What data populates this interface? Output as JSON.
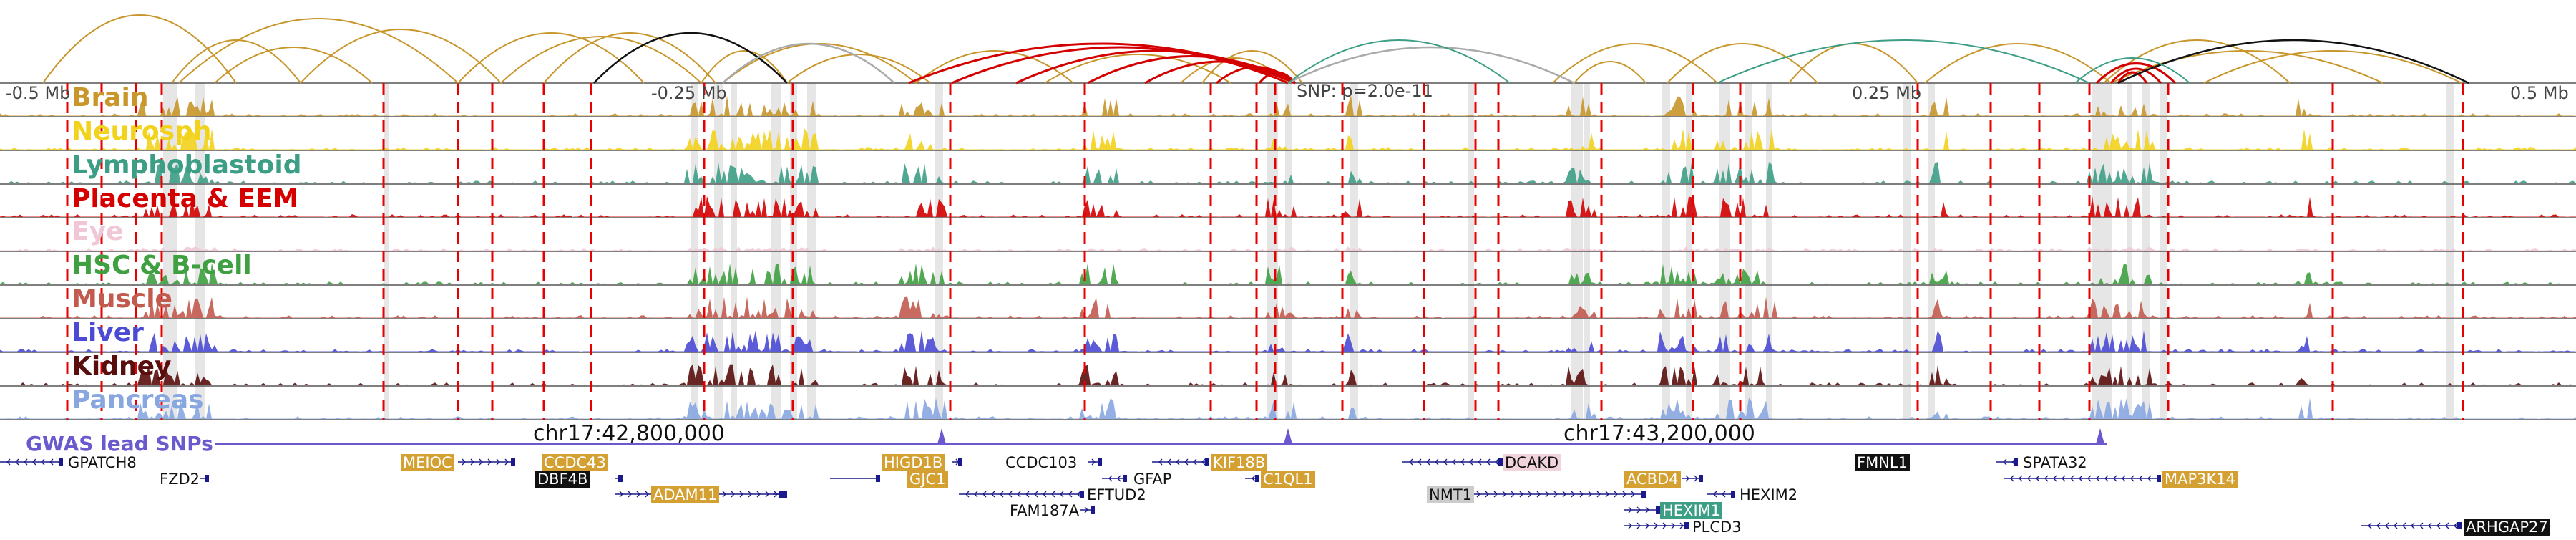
{
  "tracks": [
    {
      "label": "Brain",
      "color": "#c8962a"
    },
    {
      "label": "Neurosph",
      "color": "#f2d21b"
    },
    {
      "label": "Lymphoblastoid",
      "color": "#3d9e86"
    },
    {
      "label": "Placenta & EEM",
      "color": "#d40000"
    },
    {
      "label": "Eye",
      "color": "#f0c7d6"
    },
    {
      "label": "HSC & B-cell",
      "color": "#3ea040"
    },
    {
      "label": "Muscle",
      "color": "#c25a4e"
    },
    {
      "label": "Liver",
      "color": "#4a4ad4"
    },
    {
      "label": "Kidney",
      "color": "#5a0d0d"
    },
    {
      "label": "Pancreas",
      "color": "#88a6e0"
    }
  ],
  "axis": {
    "left": "-0.5 Mb",
    "left_mid": "-0.25 Mb",
    "snp": "SNP: p=2.0e-11",
    "right_mid": "0.25 Mb",
    "right": "0.5 Mb"
  },
  "coordinates": {
    "first": "chr17:42,800,000",
    "second": "chr17:43,200,000"
  },
  "gwas_label": "GWAS lead SNPs",
  "genes": [
    {
      "name": "GPATCH8",
      "style": "plain"
    },
    {
      "name": "FZD2",
      "style": "plain"
    },
    {
      "name": "MEIOC",
      "style": "gold"
    },
    {
      "name": "CCDC43",
      "style": "gold"
    },
    {
      "name": "DBF4B",
      "style": "dark"
    },
    {
      "name": "ADAM11",
      "style": "gold"
    },
    {
      "name": "HIGD1B",
      "style": "gold"
    },
    {
      "name": "GJC1",
      "style": "gold"
    },
    {
      "name": "CCDC103",
      "style": "plain"
    },
    {
      "name": "GFAP",
      "style": "plain"
    },
    {
      "name": "EFTUD2",
      "style": "plain"
    },
    {
      "name": "FAM187A",
      "style": "plain"
    },
    {
      "name": "KIF18B",
      "style": "gold"
    },
    {
      "name": "C1QL1",
      "style": "gold"
    },
    {
      "name": "DCAKD",
      "style": "pink"
    },
    {
      "name": "NMT1",
      "style": "grey"
    },
    {
      "name": "ACBD4",
      "style": "gold"
    },
    {
      "name": "HEXIM2",
      "style": "plain"
    },
    {
      "name": "HEXIM1",
      "style": "teal"
    },
    {
      "name": "PLCD3",
      "style": "plain"
    },
    {
      "name": "FMNL1",
      "style": "dark"
    },
    {
      "name": "SPATA32",
      "style": "plain"
    },
    {
      "name": "MAP3K14",
      "style": "gold"
    },
    {
      "name": "ARHGAP27",
      "style": "dark"
    }
  ],
  "colors": {
    "arc_gold": "#c8962a",
    "arc_red": "#d40000",
    "arc_black": "#111111",
    "arc_teal": "#3d9e86",
    "arc_grey": "#aaaaaa",
    "highlight_red": "#e60000",
    "gwas": "#6a5acd",
    "gene_line": "#1a1a8c"
  }
}
